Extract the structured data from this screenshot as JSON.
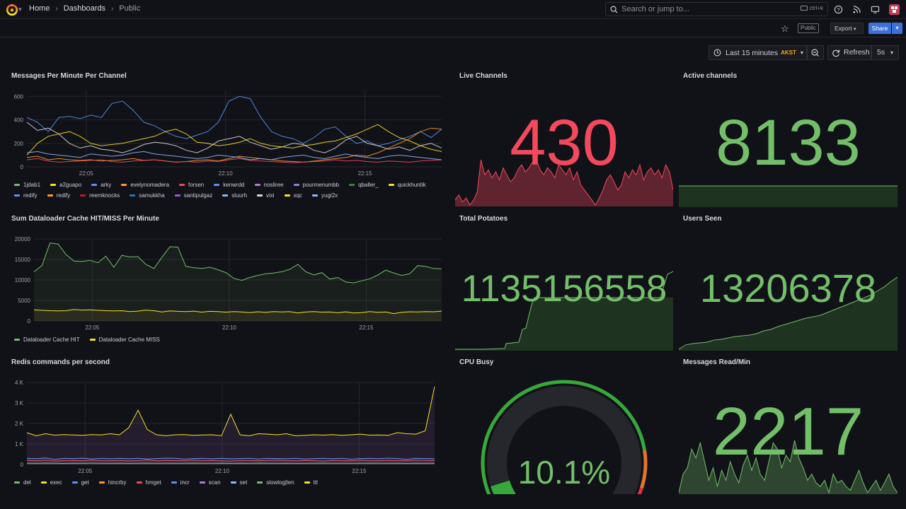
{
  "breadcrumb": {
    "home": "Home",
    "dashboards": "Dashboards",
    "current": "Public"
  },
  "search": {
    "placeholder": "Search or jump to...",
    "shortcut": "ctrl+k"
  },
  "toolbar": {
    "public_tag": "Public",
    "export_label": "Export",
    "share_label": "Share"
  },
  "timepicker": {
    "range": "Last 15 minutes",
    "timezone": "AKST",
    "refresh_label": "Refresh",
    "interval": "5s"
  },
  "colors": {
    "green": "#73bf69",
    "red": "#f2495c",
    "yellow": "#fade2a",
    "blue": "#5794f2",
    "orange": "#ff9830",
    "purple": "#b877d9"
  },
  "panels": {
    "messages_per_minute": {
      "title": "Messages Per Minute Per Channel",
      "legend": [
        {
          "name": "1jdab1",
          "color": "#73bf69"
        },
        {
          "name": "a2guapo",
          "color": "#fade2a"
        },
        {
          "name": "arky",
          "color": "#5794f2"
        },
        {
          "name": "evelynomadera",
          "color": "#ff9830"
        },
        {
          "name": "forsen",
          "color": "#f2495c"
        },
        {
          "name": "kenwrdd",
          "color": "#5794f2"
        },
        {
          "name": "nosliree",
          "color": "#b877d9"
        },
        {
          "name": "pourmenumbb",
          "color": "#8f7ee0"
        },
        {
          "name": "qballer_",
          "color": "#37872d"
        },
        {
          "name": "quickhuntik",
          "color": "#fade2a"
        },
        {
          "name": "redify",
          "color": "#5794f2"
        },
        {
          "name": "redify",
          "color": "#ff9830"
        },
        {
          "name": "reemknocks",
          "color": "#c4162a"
        },
        {
          "name": "samukkha",
          "color": "#1f78c1"
        },
        {
          "name": "santipulgaz",
          "color": "#a352cc"
        },
        {
          "name": "sluurh",
          "color": "#8ab8ff"
        },
        {
          "name": "vixi",
          "color": "#d8d9e0"
        },
        {
          "name": "xqc",
          "color": "#fade2a"
        },
        {
          "name": "yugi2x",
          "color": "#8ab8ff"
        }
      ]
    },
    "live_channels": {
      "title": "Live Channels",
      "value": "430"
    },
    "active_channels": {
      "title": "Active channels",
      "value": "8133"
    },
    "dataloader": {
      "title": "Sum Dataloader Cache HIT/MISS Per Minute",
      "legend": [
        {
          "name": "Dataloader Cache HIT",
          "color": "#73bf69"
        },
        {
          "name": "Dataloader Cache MISS",
          "color": "#fade2a"
        }
      ]
    },
    "total_potatoes": {
      "title": "Total Potatoes",
      "value": "1135156558"
    },
    "users_seen": {
      "title": "Users Seen",
      "value": "13206378"
    },
    "redis": {
      "title": "Redis commands per second",
      "legend": [
        {
          "name": "del",
          "color": "#73bf69"
        },
        {
          "name": "exec",
          "color": "#fade2a"
        },
        {
          "name": "get",
          "color": "#5794f2"
        },
        {
          "name": "hincrby",
          "color": "#ff9830"
        },
        {
          "name": "hmget",
          "color": "#f2495c"
        },
        {
          "name": "incr",
          "color": "#5794f2"
        },
        {
          "name": "scan",
          "color": "#b877d9"
        },
        {
          "name": "set",
          "color": "#8ab8ff"
        },
        {
          "name": "slowlog|len",
          "color": "#73bf69"
        },
        {
          "name": "ttl",
          "color": "#fade2a"
        }
      ]
    },
    "cpu_busy": {
      "title": "CPU Busy",
      "value": "10.1%",
      "percent": 10.1
    },
    "messages_read": {
      "title": "Messages Read/Min",
      "value": "2217"
    }
  },
  "chart_data": [
    {
      "type": "line",
      "title": "Messages Per Minute Per Channel",
      "x_ticks": [
        "22:05",
        "22:10",
        "22:15"
      ],
      "y_ticks": [
        "0",
        "200",
        "400",
        "600"
      ],
      "ylim": [
        0,
        650
      ]
    },
    {
      "type": "area",
      "title": "Sum Dataloader Cache HIT/MISS Per Minute",
      "x_ticks": [
        "22:05",
        "22:10",
        "22:15"
      ],
      "y_ticks": [
        "0",
        "5000",
        "10000",
        "15000",
        "20000"
      ],
      "ylim": [
        0,
        20000
      ],
      "series": [
        {
          "name": "Dataloader Cache HIT",
          "values": [
            12000,
            13500,
            19000,
            18800,
            16200,
            14600,
            14500,
            14800,
            14200,
            15800,
            13100,
            16000,
            15600,
            15700,
            13800,
            12800,
            15500,
            18100,
            18000,
            13300,
            13000,
            12800,
            13100,
            12500,
            11800,
            10400,
            9900,
            10600,
            11100,
            11500,
            11700,
            12000,
            12600,
            13800,
            12000,
            11200,
            11800,
            10200,
            10600,
            9500,
            9300,
            9800,
            10300,
            11200,
            12400,
            11700,
            11100,
            11500,
            13500,
            13300,
            12800,
            12700
          ]
        },
        {
          "name": "Dataloader Cache MISS",
          "values": [
            2700,
            2600,
            2500,
            2450,
            2500,
            2800,
            2650,
            2700,
            2600,
            2500,
            2450,
            2500,
            2300,
            2400,
            2650,
            2500,
            2200,
            2450,
            2350,
            2300,
            2400,
            2150,
            2350,
            2300,
            2150,
            2300,
            2200,
            2050,
            2250,
            2100,
            2300,
            2200,
            2300,
            1950,
            2200,
            2300,
            2150,
            2200,
            2000,
            2250,
            1950,
            2050,
            2300,
            2100,
            2200,
            1800,
            2100,
            2250,
            2200,
            2300,
            2250,
            2400
          ]
        }
      ]
    },
    {
      "type": "line",
      "title": "Redis commands per second",
      "x_ticks": [
        "22:05",
        "22:10",
        "22:15"
      ],
      "y_ticks": [
        "0",
        "1 K",
        "2 K",
        "3 K",
        "4 K"
      ],
      "ylim": [
        0,
        4000
      ],
      "series": [
        {
          "name": "ttl",
          "values": [
            1550,
            1400,
            1500,
            1430,
            1460,
            1440,
            1420,
            1460,
            1440,
            1500,
            1450,
            1800,
            2650,
            1700,
            1450,
            1400,
            1450,
            1460,
            1420,
            1440,
            1450,
            1400,
            2450,
            1450,
            1400,
            1500,
            1480,
            1450,
            1500,
            1400,
            1420,
            1450,
            1430,
            1460,
            1420,
            1450,
            1480,
            1430,
            1440,
            1420,
            1550,
            1500,
            1480,
            1650,
            3800
          ]
        },
        {
          "name": "get",
          "values": [
            300,
            280,
            320,
            250,
            300,
            290,
            310,
            270,
            300,
            280,
            300,
            280,
            300,
            270,
            290,
            310,
            300,
            260,
            290,
            300,
            280,
            300,
            280,
            290,
            300,
            270,
            300,
            290,
            280,
            300,
            270,
            290,
            300,
            280,
            300,
            260,
            290,
            300,
            280,
            310,
            290,
            250,
            300,
            290,
            280
          ]
        },
        {
          "name": "hmget",
          "values": [
            200,
            180,
            210,
            170,
            190,
            200,
            180,
            210,
            190,
            180,
            200,
            170,
            190,
            220,
            180,
            200,
            190,
            180,
            210,
            190,
            200,
            180,
            170,
            200,
            190,
            180,
            200,
            210,
            190,
            180,
            200,
            190,
            170,
            200,
            190,
            180,
            210,
            190,
            180,
            200,
            190,
            180,
            210,
            200,
            190
          ]
        },
        {
          "name": "exec",
          "values": [
            60,
            55,
            65,
            60,
            50,
            60,
            55,
            65,
            60,
            55,
            60,
            50,
            60,
            65,
            55,
            60,
            55,
            60,
            65,
            60,
            55,
            60,
            50,
            60,
            55,
            65,
            60,
            55,
            60,
            50,
            55,
            60,
            65,
            55,
            60,
            55,
            60,
            65,
            60,
            55,
            60,
            50,
            60,
            55,
            60
          ]
        }
      ]
    },
    {
      "type": "gauge",
      "title": "CPU Busy",
      "value": 10.1,
      "ylim": [
        0,
        100
      ]
    }
  ]
}
